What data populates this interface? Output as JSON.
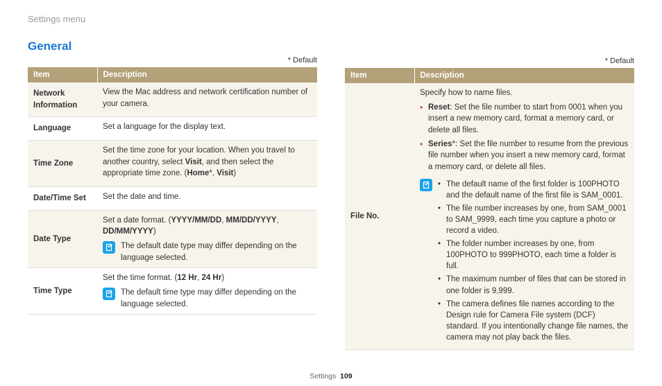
{
  "breadcrumb": "Settings menu",
  "section_title": "General",
  "default_marker": "* Default",
  "headers": {
    "item": "Item",
    "description": "Description"
  },
  "left": {
    "rows": [
      {
        "item": "Network Information",
        "shaded": true,
        "desc": "View the Mac address and network certification number of your camera."
      },
      {
        "item": "Language",
        "shaded": false,
        "desc": "Set a language for the display text."
      },
      {
        "item": "Time Zone",
        "shaded": true,
        "desc_html": "Set the time zone for your location. When you travel to another country, select <b>Visit</b>, and then select the appropriate time zone. (<b>Home</b>*, <b>Visit</b>)"
      },
      {
        "item": "Date/Time Set",
        "shaded": false,
        "desc": "Set the date and time."
      },
      {
        "item": "Date Type",
        "shaded": true,
        "desc_html": "Set a date format. (<b>YYYY/MM/DD</b>, <b>MM/DD/YYYY</b>, <b>DD/MM/YYYY</b>)",
        "note": "The default date type may differ depending on the language selected."
      },
      {
        "item": "Time Type",
        "shaded": false,
        "desc_html": "Set the time format. (<b>12 Hr</b>, <b>24 Hr</b>)",
        "note": "The default time type may differ depending on the language selected."
      }
    ]
  },
  "right": {
    "item": "File No.",
    "intro": "Specify how to name files.",
    "bullets": [
      "<b>Reset</b>: Set the file number to start from 0001 when you insert a new memory card, format a memory card, or delete all files.",
      "<b>Series</b>*: Set the file number to resume from the previous file number when you insert a new memory card, format a memory card, or delete all files."
    ],
    "note_bullets": [
      "The default name of the first folder is 100PHOTO and the default name of the first file is SAM_0001.",
      "The file number increases by one, from SAM_0001 to SAM_9999, each time you capture a photo or record a video.",
      "The folder number increases by one, from 100PHOTO to 999PHOTO, each time a folder is full.",
      "The maximum number of files that can be stored in one folder is 9,999.",
      "The camera defines file names according to the Design rule for Camera File system (DCF) standard. If you intentionally change file names, the camera may not play back the files."
    ]
  },
  "footer": {
    "label": "Settings",
    "page": "109"
  },
  "colors": {
    "header_bg": "#b3a179",
    "shaded_bg": "#f7f4ec",
    "title": "#1976d2",
    "note_icon_bg": "#1aa3e8",
    "bullet": "#c04040"
  }
}
